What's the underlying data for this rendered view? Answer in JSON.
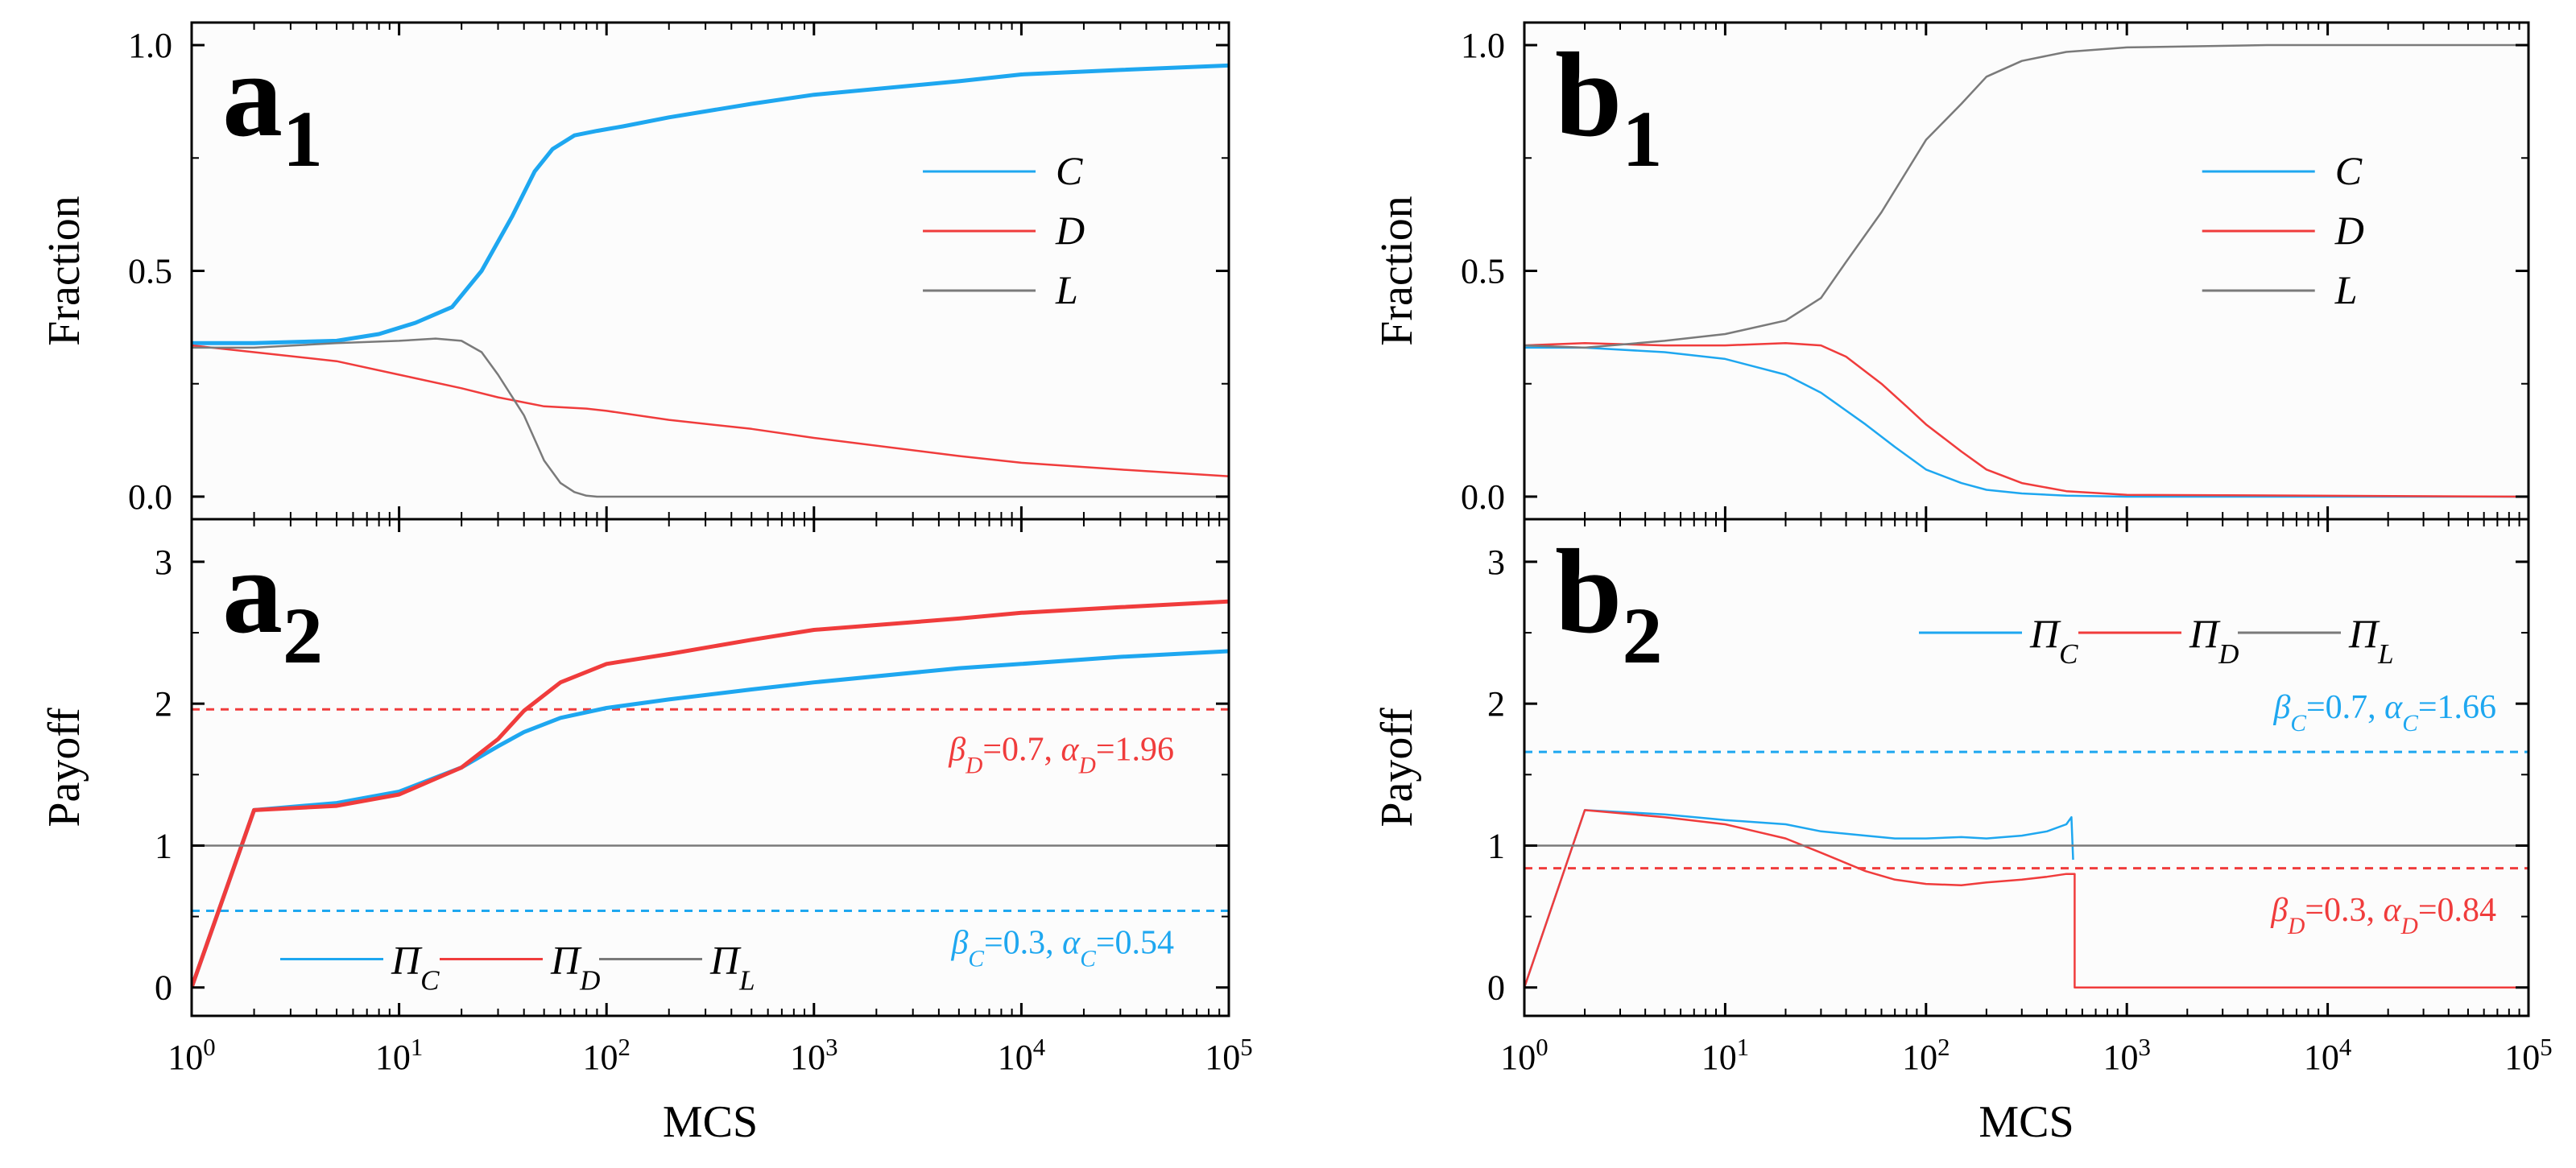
{
  "figure": {
    "panels": [
      {
        "letter": "a",
        "index": "1"
      },
      {
        "letter": "a",
        "index": "2"
      },
      {
        "letter": "b",
        "index": "1"
      },
      {
        "letter": "b",
        "index": "2"
      }
    ]
  },
  "colors": {
    "C": "#1ea7f0",
    "D": "#f03c3c",
    "L": "#7a7a7a",
    "axis": "#000000",
    "background": "#fcfcfc"
  },
  "chart_data": [
    {
      "id": "a1",
      "type": "line",
      "panel": "a₁",
      "xscale": "log",
      "xlim": [
        1,
        100000
      ],
      "ylim": [
        0,
        1.0
      ],
      "yticks": [
        "0.0",
        "0.5",
        "1.0"
      ],
      "ytick_values": [
        0,
        0.5,
        1.0
      ],
      "xlabel": "",
      "ylabel": "Fraction",
      "legend": {
        "placement": "center-right",
        "entries": [
          {
            "label": "C",
            "sub": "",
            "color": "#1ea7f0"
          },
          {
            "label": "D",
            "sub": "",
            "color": "#f03c3c"
          },
          {
            "label": "L",
            "sub": "",
            "color": "#7a7a7a"
          }
        ]
      },
      "series": [
        {
          "name": "C",
          "x": [
            1,
            2,
            5,
            8,
            12,
            18,
            25,
            35,
            45,
            55,
            70,
            90,
            120,
            200,
            500,
            1000,
            5000,
            10000,
            30000,
            100000
          ],
          "y": [
            0.34,
            0.34,
            0.345,
            0.36,
            0.385,
            0.42,
            0.5,
            0.62,
            0.72,
            0.77,
            0.8,
            0.81,
            0.82,
            0.84,
            0.87,
            0.89,
            0.92,
            0.935,
            0.945,
            0.955
          ]
        },
        {
          "name": "D",
          "x": [
            1,
            2,
            5,
            10,
            20,
            30,
            50,
            80,
            100,
            200,
            500,
            1000,
            5000,
            10000,
            30000,
            100000
          ],
          "y": [
            0.335,
            0.32,
            0.3,
            0.27,
            0.24,
            0.22,
            0.2,
            0.195,
            0.19,
            0.17,
            0.15,
            0.13,
            0.09,
            0.075,
            0.06,
            0.045
          ]
        },
        {
          "name": "L",
          "x": [
            1,
            2,
            5,
            10,
            15,
            20,
            25,
            30,
            40,
            50,
            60,
            70,
            80,
            90,
            100,
            1000,
            100000
          ],
          "y": [
            0.33,
            0.33,
            0.34,
            0.345,
            0.35,
            0.345,
            0.32,
            0.27,
            0.18,
            0.08,
            0.03,
            0.01,
            0.002,
            0.0,
            0.0,
            0.0,
            0.0
          ]
        }
      ]
    },
    {
      "id": "a2",
      "type": "line",
      "panel": "a₂",
      "xscale": "log",
      "xlim": [
        1,
        100000
      ],
      "ylim": [
        -0.2,
        3.3
      ],
      "yticks": [
        "0",
        "1",
        "2",
        "3"
      ],
      "ytick_values": [
        0,
        1,
        2,
        3
      ],
      "xticks": [
        "10^0",
        "10^1",
        "10^2",
        "10^3",
        "10^4",
        "10^5"
      ],
      "xlabel": "MCS",
      "ylabel": "Payoff",
      "legend": {
        "placement": "bottom-left",
        "entries": [
          {
            "label": "Π",
            "sub": "C",
            "color": "#1ea7f0"
          },
          {
            "label": "Π",
            "sub": "D",
            "color": "#f03c3c"
          },
          {
            "label": "Π",
            "sub": "L",
            "color": "#7a7a7a"
          }
        ]
      },
      "series": [
        {
          "name": "Π_C",
          "x": [
            1,
            2,
            5,
            10,
            20,
            30,
            40,
            60,
            100,
            200,
            500,
            1000,
            5000,
            10000,
            30000,
            100000
          ],
          "y": [
            0,
            1.25,
            1.3,
            1.38,
            1.55,
            1.7,
            1.8,
            1.9,
            1.97,
            2.03,
            2.1,
            2.15,
            2.25,
            2.28,
            2.33,
            2.37
          ]
        },
        {
          "name": "Π_D",
          "x": [
            1,
            2,
            5,
            10,
            20,
            30,
            40,
            60,
            100,
            200,
            500,
            1000,
            5000,
            10000,
            30000,
            100000
          ],
          "y": [
            0,
            1.25,
            1.28,
            1.36,
            1.55,
            1.75,
            1.95,
            2.15,
            2.28,
            2.35,
            2.45,
            2.52,
            2.6,
            2.64,
            2.68,
            2.72
          ]
        },
        {
          "name": "Π_L",
          "x": [
            1,
            100000
          ],
          "y": [
            1,
            1
          ]
        }
      ],
      "reference_lines": [
        {
          "y": 1.96,
          "color": "#f03c3c",
          "style": "dashed"
        },
        {
          "y": 0.54,
          "color": "#1ea7f0",
          "style": "dashed"
        }
      ],
      "annotations": [
        {
          "beta": "β",
          "beta_sub": "D",
          "beta_val": "=0.7, ",
          "alpha": "α",
          "alpha_sub": "D",
          "alpha_val": "=1.96",
          "color": "#f03c3c"
        },
        {
          "beta": "β",
          "beta_sub": "C",
          "beta_val": "=0.3, ",
          "alpha": "α",
          "alpha_sub": "C",
          "alpha_val": "=0.54",
          "color": "#1ea7f0"
        }
      ]
    },
    {
      "id": "b1",
      "type": "line",
      "panel": "b₁",
      "xscale": "log",
      "xlim": [
        1,
        100000
      ],
      "ylim": [
        0,
        1.0
      ],
      "yticks": [
        "0.0",
        "0.5",
        "1.0"
      ],
      "ytick_values": [
        0,
        0.5,
        1.0
      ],
      "xlabel": "",
      "ylabel": "Fraction",
      "legend": {
        "placement": "center-right",
        "entries": [
          {
            "label": "C",
            "sub": "",
            "color": "#1ea7f0"
          },
          {
            "label": "D",
            "sub": "",
            "color": "#f03c3c"
          },
          {
            "label": "L",
            "sub": "",
            "color": "#7a7a7a"
          }
        ]
      },
      "series": [
        {
          "name": "C",
          "x": [
            1,
            2,
            5,
            10,
            20,
            30,
            50,
            70,
            100,
            150,
            200,
            300,
            500,
            1000,
            100000
          ],
          "y": [
            0.33,
            0.33,
            0.32,
            0.305,
            0.27,
            0.23,
            0.16,
            0.11,
            0.06,
            0.03,
            0.015,
            0.007,
            0.002,
            0.0,
            0.0
          ]
        },
        {
          "name": "D",
          "x": [
            1,
            2,
            5,
            10,
            20,
            30,
            40,
            60,
            80,
            100,
            150,
            200,
            300,
            500,
            1000,
            100000
          ],
          "y": [
            0.335,
            0.34,
            0.335,
            0.335,
            0.34,
            0.335,
            0.31,
            0.25,
            0.2,
            0.16,
            0.1,
            0.06,
            0.03,
            0.012,
            0.004,
            0.0
          ]
        },
        {
          "name": "L",
          "x": [
            1,
            2,
            5,
            10,
            20,
            30,
            40,
            60,
            80,
            100,
            150,
            200,
            300,
            500,
            1000,
            5000,
            100000
          ],
          "y": [
            0.335,
            0.33,
            0.345,
            0.36,
            0.39,
            0.44,
            0.52,
            0.63,
            0.72,
            0.79,
            0.87,
            0.93,
            0.965,
            0.985,
            0.995,
            1.0,
            1.0
          ]
        }
      ]
    },
    {
      "id": "b2",
      "type": "line",
      "panel": "b₂",
      "xscale": "log",
      "xlim": [
        1,
        100000
      ],
      "ylim": [
        -0.2,
        3.3
      ],
      "yticks": [
        "0",
        "1",
        "2",
        "3"
      ],
      "ytick_values": [
        0,
        1,
        2,
        3
      ],
      "xticks": [
        "10^0",
        "10^1",
        "10^2",
        "10^3",
        "10^4",
        "10^5"
      ],
      "xlabel": "MCS",
      "ylabel": "Payoff",
      "legend": {
        "placement": "top",
        "entries": [
          {
            "label": "Π",
            "sub": "C",
            "color": "#1ea7f0"
          },
          {
            "label": "Π",
            "sub": "D",
            "color": "#f03c3c"
          },
          {
            "label": "Π",
            "sub": "L",
            "color": "#7a7a7a"
          }
        ]
      },
      "series": [
        {
          "name": "Π_C",
          "x": [
            1,
            2,
            5,
            10,
            20,
            30,
            50,
            70,
            100,
            150,
            200,
            300,
            400,
            500,
            530,
            540
          ],
          "y": [
            0,
            1.25,
            1.22,
            1.18,
            1.15,
            1.1,
            1.07,
            1.05,
            1.05,
            1.06,
            1.05,
            1.07,
            1.1,
            1.15,
            1.2,
            0.9
          ]
        },
        {
          "name": "Π_D",
          "x": [
            1,
            2,
            5,
            10,
            20,
            30,
            50,
            70,
            100,
            150,
            200,
            300,
            400,
            500,
            540,
            550,
            100000
          ],
          "y": [
            0,
            1.25,
            1.2,
            1.15,
            1.05,
            0.95,
            0.82,
            0.76,
            0.73,
            0.72,
            0.74,
            0.76,
            0.78,
            0.8,
            0.8,
            0,
            0
          ]
        },
        {
          "name": "Π_L",
          "x": [
            1,
            100000
          ],
          "y": [
            1,
            1
          ]
        }
      ],
      "reference_lines": [
        {
          "y": 1.66,
          "color": "#1ea7f0",
          "style": "dashed"
        },
        {
          "y": 0.84,
          "color": "#f03c3c",
          "style": "dashed"
        }
      ],
      "annotations": [
        {
          "beta": "β",
          "beta_sub": "C",
          "beta_val": "=0.7, ",
          "alpha": "α",
          "alpha_sub": "C",
          "alpha_val": "=1.66",
          "color": "#1ea7f0"
        },
        {
          "beta": "β",
          "beta_sub": "D",
          "beta_val": "=0.3, ",
          "alpha": "α",
          "alpha_sub": "D",
          "alpha_val": "=0.84",
          "color": "#f03c3c"
        }
      ]
    }
  ]
}
